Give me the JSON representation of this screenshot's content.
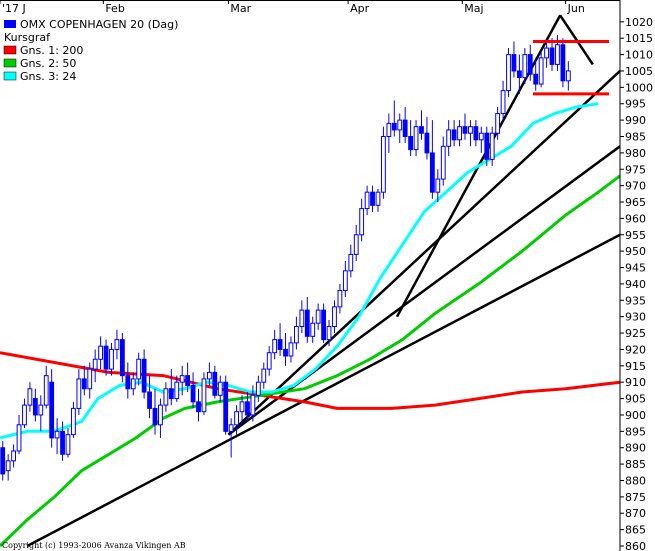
{
  "chart_data": {
    "type": "candlestick",
    "title": "OMX COPENHAGEN 20 (Dag)",
    "legend_header": "Kursgraf",
    "legend_placement": "top-left",
    "copyright": "Copyright (c) 1993-2006 Avanza Vikingen AB",
    "x_ticks": [
      {
        "label": "'17 J",
        "day": 0
      },
      {
        "label": "Feb",
        "day": 19
      },
      {
        "label": "Mar",
        "day": 42
      },
      {
        "label": "Apr",
        "day": 64
      },
      {
        "label": "Maj",
        "day": 85
      },
      {
        "label": "Jun",
        "day": 104
      }
    ],
    "x_range": [
      0,
      114
    ],
    "y_range": [
      860,
      1023
    ],
    "y_ticks": [
      860,
      865,
      870,
      875,
      880,
      885,
      890,
      895,
      900,
      905,
      910,
      915,
      920,
      925,
      930,
      935,
      940,
      945,
      950,
      955,
      960,
      965,
      970,
      975,
      980,
      985,
      990,
      995,
      1000,
      1005,
      1010,
      1015,
      1020
    ],
    "grid": false,
    "colors": {
      "candle_up": "#ffffff",
      "candle_down": "#0000ff",
      "candle_outline": "#0000ff",
      "ma200": "#ff0000",
      "ma50": "#00cc00",
      "ma24": "#00ffff",
      "trendline": "#000000"
    },
    "series": [
      {
        "name": "OMX COPENHAGEN 20 (Dag)",
        "kind": "ohlc",
        "values": [
          [
            890,
            892,
            880,
            882
          ],
          [
            883,
            888,
            880,
            886
          ],
          [
            886,
            891,
            884,
            889
          ],
          [
            889,
            900,
            888,
            897
          ],
          [
            897,
            905,
            896,
            903
          ],
          [
            903,
            910,
            901,
            908
          ],
          [
            905,
            908,
            898,
            900
          ],
          [
            900,
            906,
            895,
            903
          ],
          [
            903,
            915,
            902,
            912
          ],
          [
            910,
            914,
            890,
            893
          ],
          [
            893,
            899,
            888,
            895
          ],
          [
            895,
            898,
            886,
            888
          ],
          [
            888,
            896,
            887,
            894
          ],
          [
            894,
            904,
            893,
            902
          ],
          [
            902,
            914,
            900,
            911
          ],
          [
            911,
            915,
            906,
            908
          ],
          [
            908,
            916,
            905,
            914
          ],
          [
            914,
            920,
            910,
            917
          ],
          [
            917,
            924,
            914,
            921
          ],
          [
            921,
            923,
            912,
            914
          ],
          [
            914,
            922,
            912,
            920
          ],
          [
            920,
            926,
            917,
            923
          ],
          [
            923,
            925,
            910,
            912
          ],
          [
            912,
            916,
            905,
            908
          ],
          [
            908,
            913,
            906,
            911
          ],
          [
            911,
            919,
            909,
            917
          ],
          [
            917,
            920,
            905,
            907
          ],
          [
            907,
            912,
            899,
            902
          ],
          [
            902,
            908,
            894,
            897
          ],
          [
            897,
            905,
            893,
            903
          ],
          [
            903,
            910,
            901,
            908
          ],
          [
            908,
            914,
            903,
            905
          ],
          [
            905,
            912,
            904,
            910
          ],
          [
            910,
            915,
            906,
            912
          ],
          [
            912,
            916,
            907,
            909
          ],
          [
            909,
            913,
            902,
            904
          ],
          [
            904,
            908,
            898,
            901
          ],
          [
            901,
            913,
            900,
            911
          ],
          [
            911,
            916,
            909,
            913
          ],
          [
            913,
            915,
            905,
            906
          ],
          [
            906,
            912,
            904,
            910
          ],
          [
            910,
            912,
            894,
            895
          ],
          [
            895,
            899,
            887,
            897
          ],
          [
            897,
            903,
            894,
            901
          ],
          [
            901,
            906,
            897,
            904
          ],
          [
            904,
            907,
            898,
            900
          ],
          [
            900,
            909,
            898,
            906
          ],
          [
            906,
            912,
            904,
            910
          ],
          [
            910,
            916,
            908,
            914
          ],
          [
            914,
            921,
            912,
            919
          ],
          [
            919,
            926,
            917,
            923
          ],
          [
            923,
            928,
            918,
            920
          ],
          [
            920,
            925,
            915,
            918
          ],
          [
            918,
            924,
            916,
            922
          ],
          [
            922,
            930,
            920,
            927
          ],
          [
            927,
            935,
            925,
            932
          ],
          [
            932,
            936,
            922,
            924
          ],
          [
            924,
            930,
            922,
            928
          ],
          [
            928,
            934,
            926,
            932
          ],
          [
            932,
            934,
            922,
            923
          ],
          [
            923,
            929,
            921,
            927
          ],
          [
            927,
            935,
            925,
            933
          ],
          [
            933,
            940,
            931,
            938
          ],
          [
            938,
            947,
            936,
            944
          ],
          [
            944,
            952,
            942,
            949
          ],
          [
            949,
            958,
            947,
            955
          ],
          [
            955,
            966,
            953,
            963
          ],
          [
            963,
            970,
            961,
            968
          ],
          [
            968,
            970,
            962,
            964
          ],
          [
            964,
            969,
            962,
            968
          ],
          [
            968,
            988,
            966,
            985
          ],
          [
            985,
            992,
            980,
            989
          ],
          [
            989,
            996,
            985,
            987
          ],
          [
            987,
            992,
            983,
            990
          ],
          [
            990,
            994,
            983,
            985
          ],
          [
            985,
            990,
            979,
            981
          ],
          [
            981,
            990,
            979,
            988
          ],
          [
            988,
            993,
            984,
            986
          ],
          [
            986,
            991,
            978,
            980
          ],
          [
            980,
            990,
            966,
            968
          ],
          [
            968,
            975,
            965,
            972
          ],
          [
            972,
            985,
            970,
            982
          ],
          [
            982,
            990,
            979,
            987
          ],
          [
            987,
            990,
            982,
            984
          ],
          [
            984,
            990,
            982,
            988
          ],
          [
            988,
            992,
            984,
            986
          ],
          [
            986,
            990,
            982,
            988
          ],
          [
            988,
            990,
            982,
            984
          ],
          [
            984,
            988,
            980,
            986
          ],
          [
            986,
            988,
            976,
            978
          ],
          [
            978,
            988,
            976,
            986
          ],
          [
            986,
            994,
            984,
            992
          ],
          [
            992,
            1002,
            990,
            999
          ],
          [
            999,
            1012,
            997,
            1010
          ],
          [
            1010,
            1014,
            1003,
            1005
          ],
          [
            1005,
            1010,
            998,
            1003
          ],
          [
            1003,
            1012,
            1001,
            1010
          ],
          [
            1010,
            1013,
            1002,
            1004
          ],
          [
            1004,
            1009,
            999,
            1001
          ],
          [
            1001,
            1011,
            1000,
            1009
          ],
          [
            1009,
            1014,
            1006,
            1012
          ],
          [
            1012,
            1015,
            1005,
            1007
          ],
          [
            1007,
            1016,
            1005,
            1013
          ],
          [
            1013,
            1015,
            1000,
            1002
          ],
          [
            1002,
            1008,
            999,
            1005
          ]
        ]
      },
      {
        "name": "Gns. 1: 200",
        "kind": "line",
        "color": "#ff0000",
        "points": [
          [
            0,
            919
          ],
          [
            10,
            916
          ],
          [
            20,
            913
          ],
          [
            30,
            912
          ],
          [
            40,
            908
          ],
          [
            48,
            906
          ],
          [
            56,
            904
          ],
          [
            62,
            902
          ],
          [
            72,
            902
          ],
          [
            80,
            903
          ],
          [
            88,
            905
          ],
          [
            96,
            907
          ],
          [
            104,
            908
          ],
          [
            114,
            910
          ]
        ]
      },
      {
        "name": "Gns. 2: 50",
        "kind": "line",
        "color": "#00cc00",
        "points": [
          [
            0,
            860
          ],
          [
            5,
            868
          ],
          [
            10,
            875
          ],
          [
            15,
            883
          ],
          [
            20,
            888
          ],
          [
            25,
            893
          ],
          [
            30,
            899
          ],
          [
            34,
            902
          ],
          [
            40,
            904
          ],
          [
            48,
            906
          ],
          [
            56,
            908
          ],
          [
            62,
            912
          ],
          [
            68,
            917
          ],
          [
            74,
            923
          ],
          [
            80,
            931
          ],
          [
            88,
            940
          ],
          [
            96,
            950
          ],
          [
            104,
            961
          ],
          [
            110,
            968
          ],
          [
            114,
            973
          ]
        ]
      },
      {
        "name": "Gns. 3: 24",
        "kind": "line",
        "color": "#00ffff",
        "points": [
          [
            0,
            893
          ],
          [
            5,
            895
          ],
          [
            10,
            895
          ],
          [
            15,
            898
          ],
          [
            18,
            905
          ],
          [
            22,
            909
          ],
          [
            26,
            910
          ],
          [
            30,
            907
          ],
          [
            34,
            908
          ],
          [
            38,
            910
          ],
          [
            42,
            909
          ],
          [
            46,
            907
          ],
          [
            50,
            907
          ],
          [
            54,
            909
          ],
          [
            58,
            914
          ],
          [
            62,
            921
          ],
          [
            66,
            930
          ],
          [
            70,
            942
          ],
          [
            74,
            952
          ],
          [
            78,
            962
          ],
          [
            82,
            968
          ],
          [
            86,
            974
          ],
          [
            90,
            978
          ],
          [
            94,
            982
          ],
          [
            98,
            989
          ],
          [
            102,
            992
          ],
          [
            106,
            994
          ],
          [
            110,
            995
          ]
        ]
      }
    ],
    "trendlines": [
      {
        "from": [
          5,
          860
        ],
        "to": [
          114,
          955
        ]
      },
      {
        "from": [
          42,
          894
        ],
        "to": [
          114,
          982
        ]
      },
      {
        "from": [
          42,
          894
        ],
        "to": [
          114,
          1005
        ]
      },
      {
        "from": [
          73,
          930
        ],
        "to": [
          103,
          1022
        ]
      },
      {
        "from": [
          103,
          1022
        ],
        "to": [
          109,
          1007
        ]
      }
    ],
    "levels": [
      {
        "y": 1014,
        "x_from": 98,
        "x_to": 112,
        "color": "#ff0000"
      },
      {
        "y": 998,
        "x_from": 98,
        "x_to": 112,
        "color": "#ff0000"
      }
    ]
  }
}
